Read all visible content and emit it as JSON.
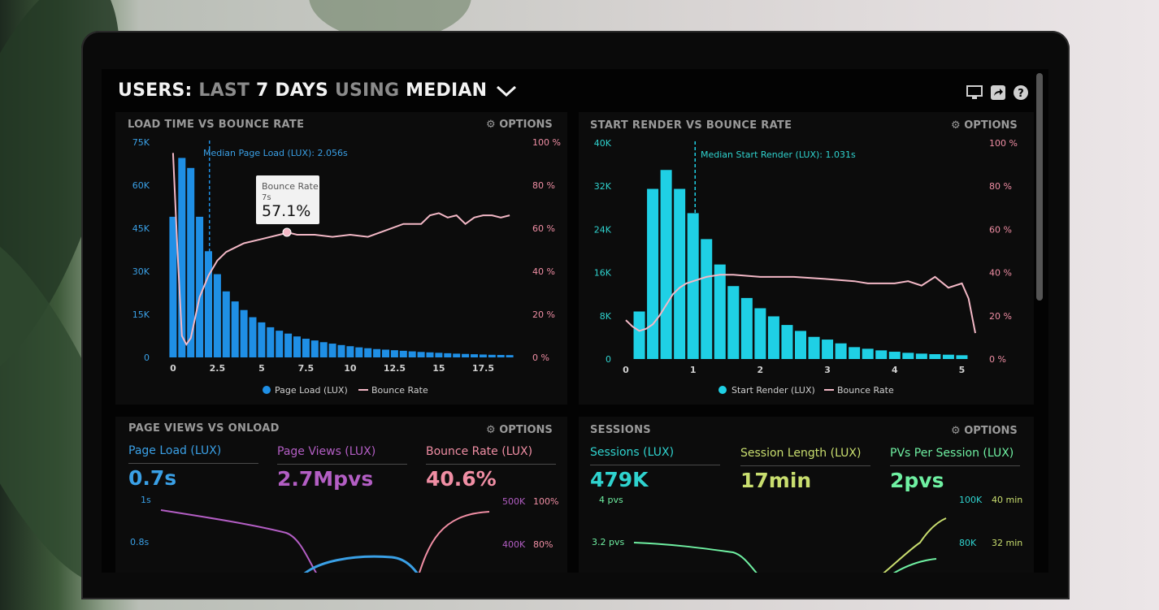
{
  "header": {
    "part1": "USERS:",
    "part2": "LAST",
    "part3": "7 DAYS",
    "part4": "USING",
    "part5": "MEDIAN"
  },
  "options_label": "OPTIONS",
  "panels": {
    "load_time": {
      "title": "LOAD TIME VS BOUNCE RATE",
      "median_label": "Median Page Load (LUX): 2.056s",
      "tooltip": {
        "title": "Bounce Rate",
        "sub": "7s",
        "value": "57.1%"
      },
      "legend": [
        "Page Load (LUX)",
        "Bounce Rate"
      ]
    },
    "start_render": {
      "title": "START RENDER VS BOUNCE RATE",
      "median_label": "Median Start Render (LUX): 1.031s",
      "legend": [
        "Start Render (LUX)",
        "Bounce Rate"
      ]
    },
    "page_views": {
      "title": "PAGE VIEWS VS ONLOAD",
      "metrics": [
        {
          "label": "Page Load (LUX)",
          "value": "0.7s"
        },
        {
          "label": "Page Views (LUX)",
          "value": "2.7Mpvs"
        },
        {
          "label": "Bounce Rate (LUX)",
          "value": "40.6%"
        }
      ],
      "left_ticks": [
        "1s",
        "0.8s"
      ],
      "right_ticks_a": [
        "500K",
        "400K"
      ],
      "right_ticks_b": [
        "100%",
        "80%"
      ]
    },
    "sessions": {
      "title": "SESSIONS",
      "metrics": [
        {
          "label": "Sessions (LUX)",
          "value": "479K"
        },
        {
          "label": "Session Length (LUX)",
          "value": "17min"
        },
        {
          "label": "PVs Per Session (LUX)",
          "value": "2pvs"
        }
      ],
      "left_ticks": [
        "4 pvs",
        "3.2 pvs"
      ],
      "right_ticks_a": [
        "100K",
        "80K"
      ],
      "right_ticks_b": [
        "40 min",
        "32 min"
      ]
    }
  },
  "chart_data": [
    {
      "type": "bar",
      "title": "LOAD TIME VS BOUNCE RATE",
      "x_ticks": [
        "0",
        "2.5",
        "5",
        "7.5",
        "10",
        "12.5",
        "15",
        "17.5"
      ],
      "y_left_ticks": [
        "75K",
        "60K",
        "45K",
        "30K",
        "15K",
        "0"
      ],
      "y_right_ticks": [
        "100 %",
        "80 %",
        "60 %",
        "40 %",
        "20 %",
        "0 %"
      ],
      "ylim": [
        0,
        75000
      ],
      "xlim": [
        -0.5,
        19.5
      ],
      "median_x": 2.056,
      "series": [
        {
          "name": "Page Load (LUX)",
          "type": "bar",
          "x": [
            0,
            0.5,
            1,
            1.5,
            2,
            2.5,
            3,
            3.5,
            4,
            4.5,
            5,
            5.5,
            6,
            6.5,
            7,
            7.5,
            8,
            8.5,
            9,
            9.5,
            10,
            10.5,
            11,
            11.5,
            12,
            12.5,
            13,
            13.5,
            14,
            14.5,
            15,
            15.5,
            16,
            16.5,
            17,
            17.5,
            18,
            18.5,
            19
          ],
          "values": [
            49000,
            69500,
            66000,
            49000,
            37000,
            29000,
            23000,
            19500,
            16500,
            14000,
            12200,
            10500,
            9300,
            8300,
            7300,
            6500,
            5900,
            5300,
            4800,
            4300,
            3900,
            3500,
            3200,
            2900,
            2700,
            2500,
            2300,
            2100,
            1900,
            1750,
            1600,
            1450,
            1300,
            1200,
            1100,
            1000,
            900,
            850,
            800
          ]
        },
        {
          "name": "Bounce Rate",
          "type": "line",
          "x": [
            0,
            0.25,
            0.5,
            0.75,
            1,
            1.5,
            2,
            2.5,
            3,
            3.5,
            4,
            5,
            6,
            6.5,
            7,
            8,
            9,
            10,
            11,
            12,
            13,
            14,
            14.5,
            15,
            15.5,
            16,
            16.5,
            17,
            17.5,
            18,
            18.5,
            19
          ],
          "values": [
            95,
            50,
            10,
            6,
            9,
            28,
            38,
            45,
            49,
            51,
            53,
            55,
            57,
            58,
            57,
            57,
            56,
            57,
            56,
            59,
            62,
            62,
            66,
            67,
            65,
            66,
            62,
            65,
            66,
            66,
            65,
            66
          ]
        }
      ]
    },
    {
      "type": "bar",
      "title": "START RENDER VS BOUNCE RATE",
      "x_ticks": [
        "0",
        "1",
        "2",
        "3",
        "4",
        "5"
      ],
      "y_left_ticks": [
        "40K",
        "32K",
        "24K",
        "16K",
        "8K",
        "0"
      ],
      "y_right_ticks": [
        "100 %",
        "80 %",
        "60 %",
        "40 %",
        "20 %",
        "0 %"
      ],
      "ylim": [
        0,
        40000
      ],
      "xlim": [
        0,
        5.2
      ],
      "median_x": 1.031,
      "series": [
        {
          "name": "Start Render (LUX)",
          "type": "bar",
          "x": [
            0.2,
            0.4,
            0.6,
            0.8,
            1.0,
            1.2,
            1.4,
            1.6,
            1.8,
            2.0,
            2.2,
            2.4,
            2.6,
            2.8,
            3.0,
            3.2,
            3.4,
            3.6,
            3.8,
            4.0,
            4.2,
            4.4,
            4.6,
            4.8,
            5.0
          ],
          "values": [
            8800,
            31500,
            35000,
            31500,
            27000,
            22200,
            17500,
            13500,
            11300,
            9400,
            7900,
            6300,
            5200,
            4100,
            3600,
            2900,
            2200,
            1900,
            1600,
            1350,
            1150,
            1000,
            900,
            800,
            700
          ]
        },
        {
          "name": "Bounce Rate",
          "type": "line",
          "x": [
            0,
            0.1,
            0.2,
            0.3,
            0.4,
            0.5,
            0.6,
            0.7,
            0.8,
            0.9,
            1.0,
            1.2,
            1.4,
            1.6,
            2.0,
            2.5,
            3.0,
            3.4,
            3.6,
            3.8,
            4.0,
            4.2,
            4.4,
            4.6,
            4.8,
            5.0,
            5.1,
            5.2
          ],
          "values": [
            18,
            15,
            13,
            14,
            16,
            20,
            25,
            30,
            33,
            35,
            36,
            38,
            39,
            39,
            38,
            38,
            37,
            36,
            35,
            35,
            35,
            36,
            34,
            38,
            33,
            35,
            28,
            12
          ]
        }
      ]
    }
  ]
}
